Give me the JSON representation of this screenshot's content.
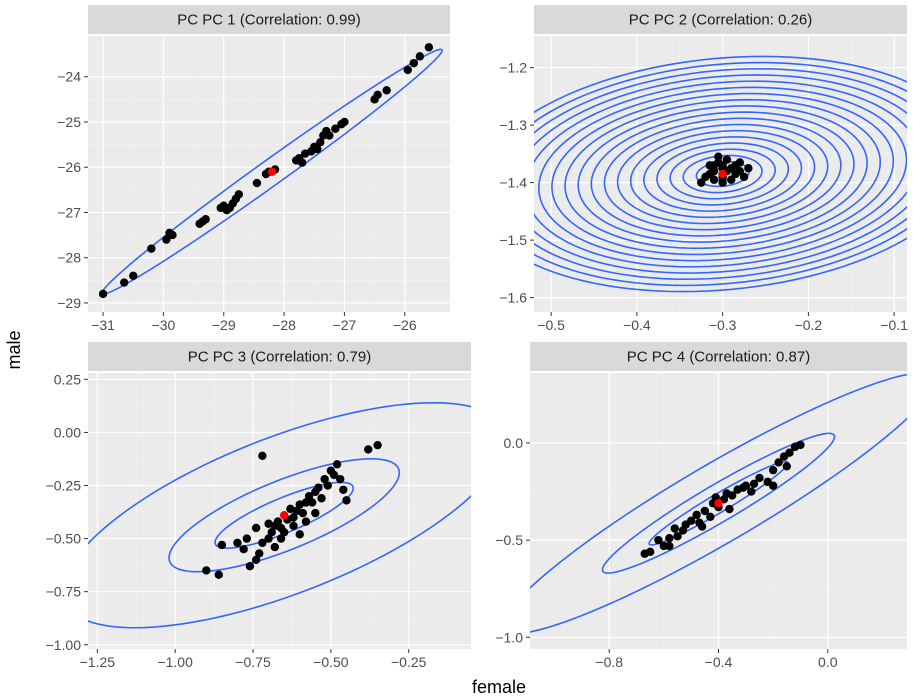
{
  "figure": {
    "xlabel": "female",
    "ylabel": "male"
  },
  "colors": {
    "panel_background": "#ebebeb",
    "strip_background": "#d9d9d9",
    "grid_major": "#ffffff",
    "grid_minor": "#f5f5f5",
    "ellipse": "#3366ff",
    "points": "#000000",
    "center_point": "#ff0000",
    "tick_text": "#4d4d4d"
  },
  "chart_data": [
    {
      "type": "scatter",
      "title": "PC PC 1 (Correlation: 0.99)",
      "xlim": [
        -31.25,
        -25.25
      ],
      "ylim": [
        -29.2,
        -23.1
      ],
      "xticks": [
        -31,
        -30,
        -29,
        -28,
        -27,
        -26
      ],
      "xtick_labels": [
        "−31",
        "−30",
        "−29",
        "−28",
        "−27",
        "−26"
      ],
      "yticks": [
        -29,
        -28,
        -27,
        -26,
        -25,
        -24
      ],
      "ytick_labels": [
        "−29",
        "−28",
        "−27",
        "−26",
        "−25",
        "−24"
      ],
      "points": [
        [
          -31.0,
          -28.8
        ],
        [
          -30.65,
          -28.55
        ],
        [
          -30.5,
          -28.4
        ],
        [
          -30.2,
          -27.8
        ],
        [
          -29.95,
          -27.6
        ],
        [
          -29.9,
          -27.45
        ],
        [
          -29.85,
          -27.5
        ],
        [
          -29.4,
          -27.25
        ],
        [
          -29.35,
          -27.2
        ],
        [
          -29.3,
          -27.15
        ],
        [
          -29.05,
          -26.9
        ],
        [
          -29.0,
          -26.85
        ],
        [
          -28.95,
          -26.95
        ],
        [
          -28.9,
          -26.9
        ],
        [
          -28.85,
          -26.8
        ],
        [
          -28.8,
          -26.7
        ],
        [
          -28.75,
          -26.6
        ],
        [
          -28.45,
          -26.35
        ],
        [
          -28.3,
          -26.15
        ],
        [
          -28.25,
          -26.1
        ],
        [
          -28.15,
          -26.05
        ],
        [
          -27.8,
          -25.85
        ],
        [
          -27.75,
          -25.8
        ],
        [
          -27.7,
          -25.9
        ],
        [
          -27.65,
          -25.7
        ],
        [
          -27.55,
          -25.65
        ],
        [
          -27.5,
          -25.55
        ],
        [
          -27.45,
          -25.6
        ],
        [
          -27.4,
          -25.45
        ],
        [
          -27.35,
          -25.3
        ],
        [
          -27.3,
          -25.2
        ],
        [
          -27.25,
          -25.3
        ],
        [
          -27.15,
          -25.15
        ],
        [
          -27.05,
          -25.05
        ],
        [
          -27.0,
          -25.0
        ],
        [
          -26.5,
          -24.5
        ],
        [
          -26.45,
          -24.4
        ],
        [
          -26.3,
          -24.3
        ],
        [
          -25.95,
          -23.85
        ],
        [
          -25.85,
          -23.7
        ],
        [
          -25.75,
          -23.55
        ],
        [
          -25.6,
          -23.35
        ]
      ],
      "center": [
        -28.2,
        -26.1
      ],
      "ellipse_levels": [
        {
          "x": -28.2,
          "y": -26.1,
          "rx": 3.9,
          "ry": 0.25,
          "angle_deg": 43.8
        }
      ]
    },
    {
      "type": "scatter",
      "title": "PC PC 2 (Correlation: 0.26)",
      "xlim": [
        -0.52,
        -0.085
      ],
      "ylim": [
        -1.625,
        -1.145
      ],
      "xticks": [
        -0.5,
        -0.4,
        -0.3,
        -0.2,
        -0.1
      ],
      "xtick_labels": [
        "−0.5",
        "−0.4",
        "−0.3",
        "−0.2",
        "−0.1"
      ],
      "yticks": [
        -1.6,
        -1.5,
        -1.4,
        -1.3,
        -1.2
      ],
      "ytick_labels": [
        "−1.6",
        "−1.5",
        "−1.4",
        "−1.3",
        "−1.2"
      ],
      "points": [
        [
          -0.31,
          -1.37
        ],
        [
          -0.305,
          -1.365
        ],
        [
          -0.3,
          -1.37
        ],
        [
          -0.295,
          -1.38
        ],
        [
          -0.29,
          -1.375
        ],
        [
          -0.285,
          -1.37
        ],
        [
          -0.28,
          -1.38
        ],
        [
          -0.275,
          -1.39
        ],
        [
          -0.3,
          -1.39
        ],
        [
          -0.31,
          -1.395
        ],
        [
          -0.315,
          -1.385
        ],
        [
          -0.32,
          -1.39
        ],
        [
          -0.3,
          -1.4
        ],
        [
          -0.29,
          -1.395
        ],
        [
          -0.305,
          -1.355
        ],
        [
          -0.295,
          -1.36
        ],
        [
          -0.285,
          -1.385
        ],
        [
          -0.28,
          -1.365
        ],
        [
          -0.31,
          -1.38
        ],
        [
          -0.325,
          -1.4
        ],
        [
          -0.27,
          -1.375
        ],
        [
          -0.315,
          -1.37
        ],
        [
          -0.3,
          -1.375
        ]
      ],
      "center": [
        -0.3,
        -1.385
      ],
      "ellipse_rings": {
        "x": -0.3,
        "y": -1.385,
        "count": 19,
        "rx_step": 0.0155,
        "ry_step": 0.0105,
        "angle_deg": 12
      }
    },
    {
      "type": "scatter",
      "title": "PC PC 3 (Correlation: 0.79)",
      "xlim": [
        -1.28,
        -0.05
      ],
      "ylim": [
        -1.02,
        0.28
      ],
      "xticks": [
        -1.25,
        -1.0,
        -0.75,
        -0.5,
        -0.25
      ],
      "xtick_labels": [
        "−1.25",
        "−1.00",
        "−0.75",
        "−0.50",
        "−0.25"
      ],
      "yticks": [
        -1.0,
        -0.75,
        -0.5,
        -0.25,
        0.0,
        0.25
      ],
      "ytick_labels": [
        "−1.00",
        "−0.75",
        "−0.50",
        "−0.25",
        "0.00",
        "0.25"
      ],
      "points": [
        [
          -0.9,
          -0.65
        ],
        [
          -0.86,
          -0.67
        ],
        [
          -0.8,
          -0.52
        ],
        [
          -0.78,
          -0.55
        ],
        [
          -0.76,
          -0.63
        ],
        [
          -0.74,
          -0.6
        ],
        [
          -0.73,
          -0.57
        ],
        [
          -0.72,
          -0.52
        ],
        [
          -0.7,
          -0.5
        ],
        [
          -0.69,
          -0.47
        ],
        [
          -0.68,
          -0.44
        ],
        [
          -0.67,
          -0.42
        ],
        [
          -0.66,
          -0.45
        ],
        [
          -0.65,
          -0.47
        ],
        [
          -0.64,
          -0.41
        ],
        [
          -0.63,
          -0.36
        ],
        [
          -0.62,
          -0.4
        ],
        [
          -0.61,
          -0.37
        ],
        [
          -0.6,
          -0.34
        ],
        [
          -0.59,
          -0.38
        ],
        [
          -0.58,
          -0.33
        ],
        [
          -0.57,
          -0.3
        ],
        [
          -0.56,
          -0.33
        ],
        [
          -0.55,
          -0.28
        ],
        [
          -0.54,
          -0.26
        ],
        [
          -0.53,
          -0.31
        ],
        [
          -0.52,
          -0.22
        ],
        [
          -0.51,
          -0.25
        ],
        [
          -0.5,
          -0.18
        ],
        [
          -0.49,
          -0.2
        ],
        [
          -0.48,
          -0.15
        ],
        [
          -0.47,
          -0.22
        ],
        [
          -0.46,
          -0.27
        ],
        [
          -0.45,
          -0.32
        ],
        [
          -0.38,
          -0.08
        ],
        [
          -0.35,
          -0.06
        ],
        [
          -0.72,
          -0.11
        ],
        [
          -0.85,
          -0.53
        ],
        [
          -0.77,
          -0.5
        ],
        [
          -0.66,
          -0.5
        ],
        [
          -0.7,
          -0.43
        ],
        [
          -0.62,
          -0.44
        ],
        [
          -0.58,
          -0.42
        ],
        [
          -0.55,
          -0.38
        ],
        [
          -0.6,
          -0.48
        ],
        [
          -0.74,
          -0.45
        ],
        [
          -0.68,
          -0.54
        ]
      ],
      "center": [
        -0.65,
        -0.39
      ],
      "ellipse_levels": [
        {
          "x": -0.65,
          "y": -0.39,
          "rx": 0.26,
          "ry": 0.075,
          "angle_deg": 33
        },
        {
          "x": -0.65,
          "y": -0.39,
          "rx": 0.43,
          "ry": 0.15,
          "angle_deg": 33
        },
        {
          "x": -0.65,
          "y": -0.39,
          "rx": 0.82,
          "ry": 0.34,
          "angle_deg": 33
        }
      ]
    },
    {
      "type": "scatter",
      "title": "PC PC 4 (Correlation: 0.87)",
      "xlim": [
        -1.09,
        0.29
      ],
      "ylim": [
        -1.06,
        0.36
      ],
      "xticks": [
        -0.8,
        -0.4,
        0.0
      ],
      "xtick_labels": [
        "−0.8",
        "−0.4",
        "0.0"
      ],
      "yticks": [
        -1.0,
        -0.5,
        0.0
      ],
      "ytick_labels": [
        "−1.0",
        "−0.5",
        "0.0"
      ],
      "points": [
        [
          -0.67,
          -0.57
        ],
        [
          -0.65,
          -0.56
        ],
        [
          -0.62,
          -0.5
        ],
        [
          -0.6,
          -0.53
        ],
        [
          -0.58,
          -0.49
        ],
        [
          -0.56,
          -0.44
        ],
        [
          -0.55,
          -0.48
        ],
        [
          -0.53,
          -0.45
        ],
        [
          -0.52,
          -0.42
        ],
        [
          -0.5,
          -0.4
        ],
        [
          -0.48,
          -0.37
        ],
        [
          -0.47,
          -0.41
        ],
        [
          -0.45,
          -0.35
        ],
        [
          -0.43,
          -0.38
        ],
        [
          -0.42,
          -0.31
        ],
        [
          -0.4,
          -0.33
        ],
        [
          -0.38,
          -0.29
        ],
        [
          -0.37,
          -0.26
        ],
        [
          -0.35,
          -0.27
        ],
        [
          -0.33,
          -0.24
        ],
        [
          -0.31,
          -0.23
        ],
        [
          -0.3,
          -0.22
        ],
        [
          -0.28,
          -0.25
        ],
        [
          -0.27,
          -0.21
        ],
        [
          -0.25,
          -0.18
        ],
        [
          -0.22,
          -0.2
        ],
        [
          -0.2,
          -0.14
        ],
        [
          -0.18,
          -0.1
        ],
        [
          -0.16,
          -0.07
        ],
        [
          -0.14,
          -0.05
        ],
        [
          -0.12,
          -0.02
        ],
        [
          -0.1,
          -0.01
        ],
        [
          -0.2,
          -0.22
        ],
        [
          -0.15,
          -0.12
        ],
        [
          -0.36,
          -0.34
        ],
        [
          -0.46,
          -0.43
        ],
        [
          -0.58,
          -0.53
        ],
        [
          -0.41,
          -0.28
        ]
      ],
      "center": [
        -0.4,
        -0.31
      ],
      "ellipse_levels": [
        {
          "x": -0.4,
          "y": -0.31,
          "rx": 0.33,
          "ry": 0.042,
          "angle_deg": 40
        },
        {
          "x": -0.4,
          "y": -0.31,
          "rx": 0.55,
          "ry": 0.085,
          "angle_deg": 40
        },
        {
          "x": -0.4,
          "y": -0.31,
          "rx": 1.02,
          "ry": 0.18,
          "angle_deg": 40
        }
      ]
    }
  ]
}
